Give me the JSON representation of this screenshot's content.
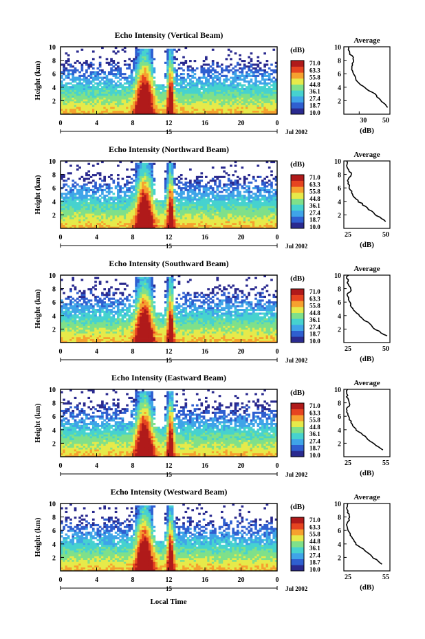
{
  "figure": {
    "xlabel": "Local Time",
    "date_label": "Jul 2002",
    "day_label": "15",
    "x_ticks": [
      "0",
      "4",
      "8",
      "12",
      "16",
      "20",
      "0"
    ],
    "y_ticks": [
      "2",
      "4",
      "6",
      "8",
      "10"
    ],
    "ylabel": "Height (km)",
    "colorbar_title": "(dB)",
    "colorbar_ticks": [
      "71.0",
      "63.3",
      "55.8",
      "44.8",
      "36.1",
      "27.4",
      "18.7",
      "10.0"
    ],
    "avg_title": "Average",
    "avg_xlabel": "(dB)",
    "colors": {
      "colorbar": [
        "#2a2a8f",
        "#2f5fd0",
        "#3fa4e8",
        "#46d2cf",
        "#7fe08a",
        "#e6ea4a",
        "#f6a12f",
        "#e64420",
        "#b01a1a"
      ]
    }
  },
  "chart_data": [
    {
      "type": "heatmap",
      "title": "Echo Intensity (Vertical Beam)",
      "xlabel": "Local Time",
      "ylabel": "Height (km)",
      "xlim": [
        0,
        24
      ],
      "ylim": [
        1,
        10
      ],
      "zlim": [
        10.0,
        71.0
      ],
      "avg_profile": {
        "xlim": [
          20,
          50
        ],
        "xticks": [
          "30",
          "50"
        ],
        "height": [
          1,
          2,
          3,
          4,
          5,
          6,
          7,
          8,
          9,
          10
        ],
        "value": [
          49,
          44,
          40,
          33,
          28,
          26,
          25,
          27,
          24,
          23
        ]
      }
    },
    {
      "type": "heatmap",
      "title": "Echo Intensity (Northward Beam)",
      "xlabel": "Local Time",
      "ylabel": "Height (km)",
      "xlim": [
        0,
        24
      ],
      "ylim": [
        1,
        10
      ],
      "zlim": [
        10.0,
        71.0
      ],
      "avg_profile": {
        "xlim": [
          25,
          50
        ],
        "xticks": [
          "25",
          "50"
        ],
        "height": [
          1,
          2,
          3,
          4,
          5,
          6,
          7,
          8,
          9,
          10
        ],
        "value": [
          48,
          42,
          38,
          33,
          30,
          28,
          27,
          29,
          27,
          27
        ]
      }
    },
    {
      "type": "heatmap",
      "title": "Echo Intensity (Southward Beam)",
      "xlabel": "Local Time",
      "ylabel": "Height (km)",
      "xlim": [
        0,
        24
      ],
      "ylim": [
        1,
        10
      ],
      "zlim": [
        10.0,
        71.0
      ],
      "avg_profile": {
        "xlim": [
          25,
          50
        ],
        "xticks": [
          "25",
          "50"
        ],
        "height": [
          1,
          2,
          3,
          4,
          5,
          6,
          7,
          8,
          9,
          10
        ],
        "value": [
          48,
          42,
          38,
          33,
          30,
          28,
          27,
          29,
          27,
          27
        ]
      }
    },
    {
      "type": "heatmap",
      "title": "Echo Intensity (Eastward Beam)",
      "xlabel": "Local Time",
      "ylabel": "Height (km)",
      "xlim": [
        0,
        24
      ],
      "ylim": [
        1,
        10
      ],
      "zlim": [
        10.0,
        71.0
      ],
      "avg_profile": {
        "xlim": [
          25,
          55
        ],
        "xticks": [
          "25",
          "55"
        ],
        "height": [
          1,
          2,
          3,
          4,
          5,
          6,
          7,
          8,
          9,
          10
        ],
        "value": [
          50,
          44,
          39,
          33,
          30,
          28,
          27,
          29,
          27,
          27
        ]
      }
    },
    {
      "type": "heatmap",
      "title": "Echo Intensity (Westward Beam)",
      "xlabel": "Local Time",
      "ylabel": "Height (km)",
      "xlim": [
        0,
        24
      ],
      "ylim": [
        1,
        10
      ],
      "zlim": [
        10.0,
        71.0
      ],
      "avg_profile": {
        "xlim": [
          25,
          55
        ],
        "xticks": [
          "25",
          "55"
        ],
        "height": [
          1,
          2,
          3,
          4,
          5,
          6,
          7,
          8,
          9,
          10
        ],
        "value": [
          50,
          44,
          39,
          33,
          30,
          28,
          27,
          29,
          27,
          27
        ]
      }
    }
  ]
}
